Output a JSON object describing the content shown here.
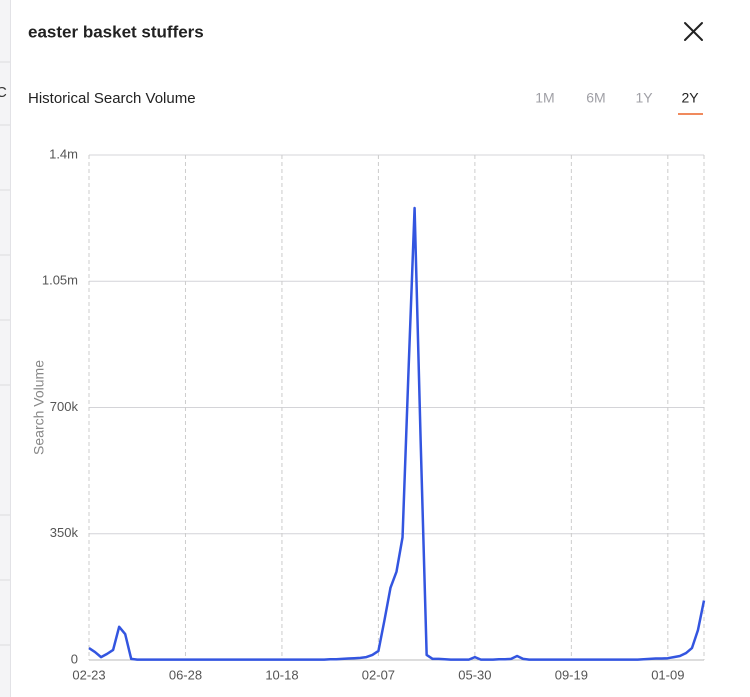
{
  "background_text": "C",
  "header": {
    "title": "easter basket stuffers"
  },
  "section_title": "Historical Search Volume",
  "tabs": [
    "1M",
    "6M",
    "1Y",
    "2Y"
  ],
  "active_tab": 3,
  "chart_data": {
    "type": "line",
    "y_label": "Search Volume",
    "color": "#3355e0",
    "grid": true,
    "ylim": [
      0,
      1400000
    ],
    "yticks": [
      0,
      {
        "value": 350000,
        "label": "350k"
      },
      {
        "value": 700000,
        "label": "700k"
      },
      {
        "value": 1050000,
        "label": "1.05m"
      },
      {
        "value": 1400000,
        "label": "1.4m"
      }
    ],
    "categories": [
      "02-23",
      null,
      null,
      null,
      null,
      null,
      null,
      null,
      null,
      null,
      null,
      null,
      null,
      null,
      null,
      null,
      "06-28",
      null,
      null,
      null,
      null,
      null,
      null,
      null,
      null,
      null,
      null,
      null,
      null,
      null,
      null,
      null,
      "10-18",
      null,
      null,
      null,
      null,
      null,
      null,
      null,
      null,
      null,
      null,
      null,
      null,
      null,
      null,
      null,
      "02-07",
      null,
      null,
      null,
      null,
      null,
      null,
      null,
      null,
      null,
      null,
      null,
      null,
      null,
      null,
      null,
      "05-30",
      null,
      null,
      null,
      null,
      null,
      null,
      null,
      null,
      null,
      null,
      null,
      null,
      null,
      null,
      null,
      "09-19",
      null,
      null,
      null,
      null,
      null,
      null,
      null,
      null,
      null,
      null,
      null,
      null,
      null,
      null,
      null,
      "01-09",
      null,
      null,
      null,
      null,
      null,
      null
    ],
    "values": [
      33000,
      22000,
      8000,
      17000,
      28000,
      92000,
      72000,
      3000,
      1000,
      1000,
      1000,
      1000,
      1000,
      1000,
      1000,
      1000,
      1000,
      1000,
      1000,
      1000,
      1000,
      1000,
      1000,
      1000,
      1000,
      1000,
      1000,
      1000,
      1000,
      1000,
      1000,
      1000,
      1000,
      1000,
      1000,
      1000,
      1000,
      1000,
      1000,
      1000,
      2000,
      2000,
      3000,
      4000,
      5000,
      6000,
      8000,
      14000,
      25000,
      110000,
      200000,
      245000,
      340000,
      805000,
      1253000,
      610000,
      14000,
      3000,
      3000,
      2000,
      1000,
      1000,
      1000,
      1000,
      8000,
      1000,
      1000,
      1000,
      2000,
      2000,
      3000,
      11000,
      3000,
      1000,
      1000,
      1000,
      1000,
      1000,
      1000,
      1000,
      1000,
      1000,
      1000,
      1000,
      1000,
      1000,
      1000,
      1000,
      1000,
      1000,
      1000,
      1000,
      2000,
      3000,
      4000,
      4000,
      5000,
      8000,
      11000,
      19000,
      33000,
      83000,
      165000
    ]
  }
}
